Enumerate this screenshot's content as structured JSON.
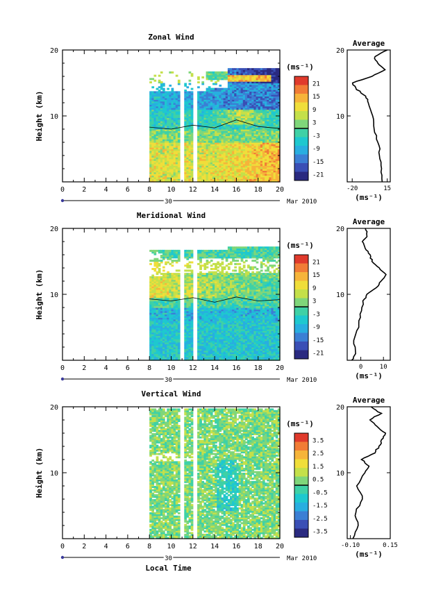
{
  "figure": {
    "x_label": "Local Time",
    "date_label": "Mar 2010",
    "day_label": "30",
    "y_label": "Height (km)"
  },
  "chart_data": [
    {
      "type": "heatmap",
      "title": "Zonal Wind",
      "xlabel": "Local Time",
      "ylabel": "Height (km)",
      "xlim": [
        0,
        20
      ],
      "ylim": [
        0,
        20
      ],
      "x_ticks": [
        0,
        2,
        4,
        6,
        8,
        10,
        12,
        14,
        16,
        18,
        20
      ],
      "y_ticks": [
        10,
        20
      ],
      "data_start_hour": 8,
      "colorbar": {
        "unit": "(ms⁻¹)",
        "ticks": [
          21,
          15,
          9,
          3,
          -3,
          -9,
          -15,
          -21
        ],
        "range": [
          -24,
          24
        ]
      },
      "average_profile": {
        "title": "Average",
        "xlabel": "(ms⁻¹)",
        "x_ticks": [
          -20,
          15
        ],
        "xlim": [
          -25,
          18
        ],
        "height": [
          0,
          2,
          4,
          6,
          8,
          10,
          12,
          13,
          14,
          15,
          16,
          17,
          18,
          19,
          20
        ],
        "value": [
          10,
          9,
          8,
          6,
          2,
          0,
          -4,
          -6,
          -15,
          -20,
          0,
          12,
          5,
          2,
          15
        ]
      }
    },
    {
      "type": "heatmap",
      "title": "Meridional Wind",
      "xlabel": "Local Time",
      "ylabel": "Height (km)",
      "xlim": [
        0,
        20
      ],
      "ylim": [
        0,
        20
      ],
      "x_ticks": [
        0,
        2,
        4,
        6,
        8,
        10,
        12,
        14,
        16,
        18,
        20
      ],
      "y_ticks": [
        10,
        20
      ],
      "data_start_hour": 8,
      "colorbar": {
        "unit": "(ms⁻¹)",
        "ticks": [
          21,
          15,
          9,
          3,
          -3,
          -9,
          -15,
          -21
        ],
        "range": [
          -24,
          24
        ]
      },
      "average_profile": {
        "title": "Average",
        "xlabel": "(ms⁻¹)",
        "x_ticks": [
          0,
          10
        ],
        "xlim": [
          -6,
          13
        ],
        "height": [
          0,
          1,
          3,
          5,
          7,
          9,
          10,
          11,
          12,
          13,
          14,
          15,
          16,
          17,
          18,
          19,
          20
        ],
        "value": [
          -4,
          -2,
          -3,
          -1,
          0,
          1,
          3,
          7,
          9,
          11,
          8,
          5,
          4,
          2,
          1,
          3,
          2
        ]
      }
    },
    {
      "type": "heatmap",
      "title": "Vertical Wind",
      "xlabel": "Local Time",
      "ylabel": "Height (km)",
      "xlim": [
        0,
        20
      ],
      "ylim": [
        0,
        20
      ],
      "x_ticks": [
        0,
        2,
        4,
        6,
        8,
        10,
        12,
        14,
        16,
        18,
        20
      ],
      "y_ticks": [
        10,
        20
      ],
      "data_start_hour": 8,
      "colorbar": {
        "unit": "(ms⁻¹)",
        "ticks": [
          3.5,
          2.5,
          1.5,
          0.5,
          -0.5,
          -1.5,
          -2.5,
          -3.5
        ],
        "range": [
          -4,
          4
        ]
      },
      "average_profile": {
        "title": "Average",
        "xlabel": "(ms⁻¹)",
        "x_ticks": [
          -0.1,
          0.15
        ],
        "x_tick_labels": [
          "-0.10",
          "0.15"
        ],
        "xlim": [
          -0.12,
          0.15
        ],
        "height": [
          0,
          2,
          4,
          6,
          8,
          10,
          11,
          12,
          13,
          14,
          15,
          16,
          17,
          18,
          19,
          20
        ],
        "value": [
          -0.08,
          -0.05,
          -0.07,
          -0.02,
          -0.06,
          -0.01,
          0.02,
          -0.03,
          0.05,
          0.08,
          0.1,
          0.12,
          0.07,
          0.02,
          0.09,
          0.03
        ]
      }
    }
  ]
}
